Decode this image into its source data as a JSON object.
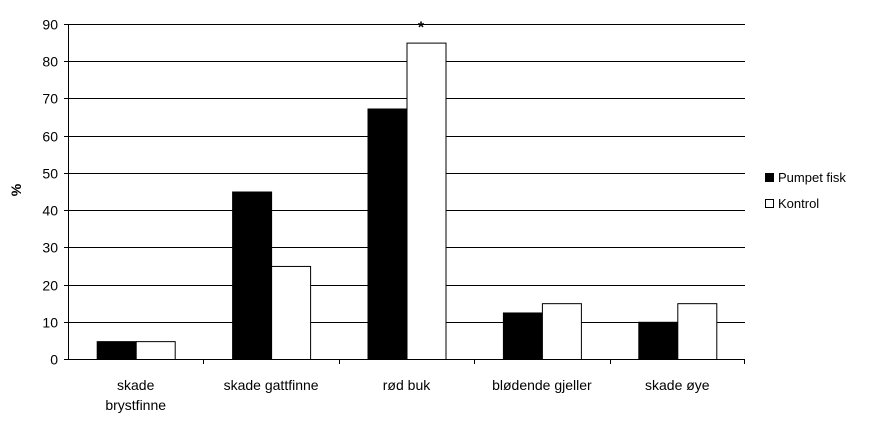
{
  "chart_data": {
    "type": "bar",
    "ylabel": "%",
    "ylim": [
      0,
      90
    ],
    "yticks": [
      0,
      10,
      20,
      30,
      40,
      50,
      60,
      70,
      80,
      90
    ],
    "grid": true,
    "legend_position": "right",
    "categories": [
      [
        "skade",
        "brystfinne"
      ],
      [
        "skade gattfinne"
      ],
      [
        "rød buk"
      ],
      [
        "blødende gjeller"
      ],
      [
        "skade øye"
      ]
    ],
    "series": [
      {
        "name": "Pumpet fisk",
        "color": "#000000",
        "values": [
          4.8,
          45,
          67.3,
          12.5,
          10
        ]
      },
      {
        "name": "Kontrol",
        "color": "#ffffff",
        "values": [
          4.8,
          25,
          85,
          15,
          15
        ]
      }
    ],
    "annotations": [
      {
        "text": "*",
        "category_index": 2,
        "series_index": 1
      }
    ]
  }
}
